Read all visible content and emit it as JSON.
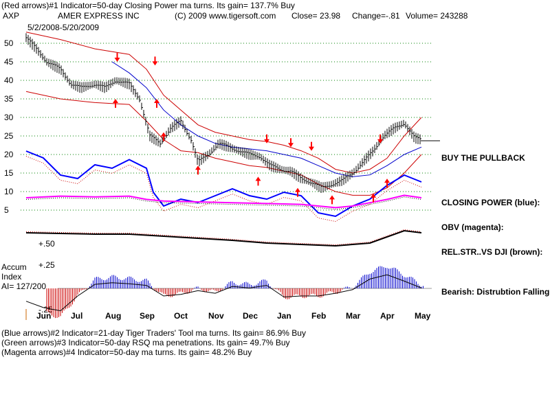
{
  "header": {
    "line1": "(Red arrows)#1 Indicator=50-day Closing Power ma turns.  Its gain= 137.7% Buy",
    "symbol": "AXP",
    "company": "AMER EXPRESS INC",
    "copyright": "(C) 2009 www.tigersoft.com",
    "close": "Close=  23.98",
    "change": "Change=-.81",
    "volume": "Volume=  243288",
    "date_range": "5/2/2008-5/20/2009"
  },
  "left_labels": {
    "accum": "Accum",
    "index": "Index",
    "ai": "AI= 127/200",
    "plus50": "+.50",
    "plus25": "+.25",
    "minus25": "-.25"
  },
  "right_labels": {
    "buy_pullback": "BUY THE PULLBACK",
    "closing_power": "CLOSING POWER (blue):",
    "obv": "OBV (magenta):",
    "rel_str": "REL.STR..VS DJI (brown):",
    "bearish": "Bearish: Distrubtion Falling."
  },
  "footer": {
    "line1": "(Blue arrows)#2 Indicator=21-day Tiger Traders' Tool ma turns.  Its gain=  86.9% Buy",
    "line2": "(Green arrows)#3 Indicator=50-day RSQ ma penetrations.  Its gain=  49.7% Buy",
    "line3": "(Magenta arrows)#4 Indicator=50-day ma turns.  Its gain=  48.2% Buy"
  },
  "colors": {
    "price": "#000000",
    "band": "#cc0000",
    "ma_blue": "#0000cc",
    "closing_power": "#0000ff",
    "obv": "#ff00ff",
    "rel_str": "#000000",
    "accum_pos": "#0000cc",
    "accum_neg": "#cc0000",
    "arrow": "#ff0000",
    "grid": "#008000"
  },
  "chart_data": {
    "type": "line",
    "title": "AMER EXPRESS INC",
    "date_range": "5/2/2008-5/20/2009",
    "y_ticks": [
      50,
      45,
      40,
      35,
      30,
      25,
      20,
      15,
      10,
      5
    ],
    "x_labels": [
      "Jun",
      "Jul",
      "Aug",
      "Sep",
      "Oct",
      "Nov",
      "Dec",
      "Jan",
      "Feb",
      "Mar",
      "Apr",
      "May"
    ],
    "x_label_t": [
      0.5,
      1.5,
      2.5,
      3.5,
      4.5,
      5.5,
      6.5,
      7.5,
      8.5,
      9.5,
      10.5,
      11.5
    ],
    "grid": true,
    "price": {
      "name": "AXP",
      "t": [
        0,
        0.3,
        0.6,
        1.0,
        1.3,
        1.6,
        2.0,
        2.3,
        2.6,
        3.0,
        3.3,
        3.6,
        3.9,
        4.2,
        4.5,
        4.8,
        5.0,
        5.3,
        5.6,
        5.9,
        6.2,
        6.5,
        6.8,
        7.1,
        7.4,
        7.7,
        8.0,
        8.3,
        8.6,
        8.9,
        9.2,
        9.5,
        9.8,
        10.1,
        10.4,
        10.7,
        11.0,
        11.3,
        11.5
      ],
      "values": [
        51.5,
        48.5,
        45,
        43,
        39,
        38,
        39,
        38,
        40,
        39,
        35,
        25,
        23,
        27,
        29,
        24,
        18,
        20,
        23,
        22,
        21,
        20,
        19.5,
        17,
        16,
        15.5,
        13.5,
        12.5,
        11,
        12,
        13,
        15,
        18,
        21,
        25,
        27,
        28.5,
        24.5,
        23.98
      ]
    },
    "upper_band": {
      "t": [
        0,
        1,
        2,
        3,
        3.5,
        4,
        4.5,
        5,
        5.5,
        6,
        6.5,
        7,
        7.5,
        8,
        8.5,
        9,
        9.5,
        10,
        10.5,
        11,
        11.5
      ],
      "values": [
        53,
        51,
        48.5,
        47,
        43,
        36,
        32,
        28,
        26,
        25,
        24,
        23.5,
        22.5,
        21,
        19,
        16,
        15,
        16,
        19,
        25,
        30
      ]
    },
    "lower_band": {
      "t": [
        0,
        1,
        2,
        3,
        3.5,
        4,
        4.5,
        5,
        5.5,
        6,
        6.5,
        7,
        7.5,
        8,
        8.5,
        9,
        9.5,
        10,
        10.5,
        11,
        11.5
      ],
      "values": [
        37,
        35,
        34,
        33.5,
        29,
        24,
        21,
        20.5,
        19,
        18,
        17,
        16.5,
        15.5,
        14.5,
        12,
        10,
        9,
        9,
        11,
        15,
        20
      ]
    },
    "ma_50": {
      "t": [
        2.5,
        3,
        3.5,
        4,
        4.5,
        5,
        5.5,
        6,
        6.5,
        7,
        7.5,
        8,
        8.5,
        9,
        9.5,
        10,
        10.5,
        11,
        11.5
      ],
      "values": [
        45,
        42,
        38,
        32,
        28,
        25,
        23,
        22,
        21.5,
        21,
        20,
        19,
        17,
        15,
        14,
        14.5,
        17,
        20,
        22
      ]
    },
    "closing_power": {
      "t": [
        0,
        0.5,
        1,
        1.5,
        2,
        2.5,
        3,
        3.5,
        3.7,
        4,
        4.5,
        5,
        5.5,
        6,
        6.5,
        7,
        7.5,
        8,
        8.5,
        9,
        9.5,
        10,
        10.5,
        11,
        11.5
      ],
      "values": [
        22,
        20,
        15,
        14,
        18,
        17,
        19.5,
        17,
        10,
        6,
        8,
        7,
        9,
        11,
        9,
        8,
        10,
        9,
        4,
        3,
        6,
        8,
        12,
        15,
        13
      ]
    },
    "obv": {
      "t": [
        0,
        1,
        2,
        3,
        3.5,
        4,
        5,
        6,
        7,
        8,
        8.5,
        9,
        9.5,
        10,
        10.5,
        11,
        11.5
      ],
      "values": [
        5,
        6,
        5.5,
        6,
        4,
        3,
        2.5,
        2,
        1.5,
        1,
        0,
        -1,
        0,
        2,
        4,
        6.5,
        5
      ]
    },
    "rel_str": {
      "t": [
        0,
        1,
        2,
        3,
        4,
        5,
        6,
        7,
        8,
        9,
        10,
        11,
        11.5
      ],
      "values": [
        0.38,
        0.36,
        0.34,
        0.34,
        0.28,
        0.22,
        0.16,
        0.08,
        0.04,
        0.0,
        0.08,
        0.44,
        0.38
      ]
    },
    "accum_index": {
      "t": [
        0,
        0.5,
        1,
        1.5,
        2,
        2.5,
        3,
        3.5,
        4,
        4.5,
        5,
        5.5,
        6,
        6.5,
        7,
        7.5,
        8,
        8.5,
        9,
        9.5,
        10,
        10.5,
        11,
        11.5
      ],
      "values": [
        -0.2,
        -0.32,
        -0.38,
        -0.1,
        0.12,
        0.15,
        0.13,
        0.1,
        -0.1,
        -0.07,
        0,
        -0.05,
        0.08,
        0.05,
        0.1,
        -0.12,
        -0.1,
        -0.1,
        -0.05,
        0.02,
        0.22,
        0.3,
        0.18,
        0.05
      ]
    },
    "red_arrows": [
      {
        "t": 2.65,
        "dir": "down",
        "v": 45
      },
      {
        "t": 3.75,
        "dir": "down",
        "v": 44
      },
      {
        "t": 7.0,
        "dir": "down",
        "v": 23
      },
      {
        "t": 7.7,
        "dir": "down",
        "v": 22
      },
      {
        "t": 8.3,
        "dir": "down",
        "v": 21
      },
      {
        "t": 10.3,
        "dir": "down",
        "v": 23
      },
      {
        "t": 2.6,
        "dir": "up",
        "v": 35
      },
      {
        "t": 3.8,
        "dir": "up",
        "v": 35
      },
      {
        "t": 4.0,
        "dir": "up",
        "v": 26
      },
      {
        "t": 5.0,
        "dir": "up",
        "v": 17
      },
      {
        "t": 6.75,
        "dir": "up",
        "v": 14
      },
      {
        "t": 7.9,
        "dir": "up",
        "v": 11
      },
      {
        "t": 8.9,
        "dir": "up",
        "v": 9
      },
      {
        "t": 10.1,
        "dir": "up",
        "v": 9.5
      },
      {
        "t": 10.5,
        "dir": "up",
        "v": 13.5
      }
    ]
  }
}
